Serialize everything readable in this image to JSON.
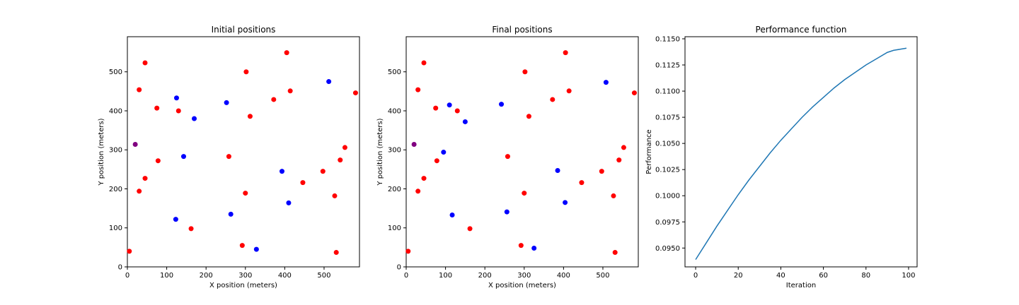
{
  "chart_data": [
    {
      "type": "scatter",
      "title": "Initial positions",
      "xlabel": "X position (meters)",
      "ylabel": "Y position (meters)",
      "xlim": [
        0,
        590
      ],
      "ylim": [
        0,
        590
      ],
      "xticks": [
        0,
        100,
        200,
        300,
        400,
        500
      ],
      "yticks": [
        0,
        100,
        200,
        300,
        400,
        500
      ],
      "colors": {
        "red": "#ff0000",
        "blue": "#0000ff",
        "purple": "#800080"
      },
      "series": [
        {
          "color": "red",
          "points": [
            [
              5,
              40
            ],
            [
              45,
              523
            ],
            [
              30,
              454
            ],
            [
              75,
              407
            ],
            [
              78,
              272
            ],
            [
              45,
              227
            ],
            [
              30,
              194
            ],
            [
              130,
              400
            ],
            [
              162,
              98
            ],
            [
              258,
              283
            ],
            [
              302,
              500
            ],
            [
              312,
              386
            ],
            [
              300,
              189
            ],
            [
              292,
              55
            ],
            [
              372,
              429
            ],
            [
              405,
              549
            ],
            [
              414,
              451
            ],
            [
              446,
              216
            ],
            [
              497,
              245
            ],
            [
              527,
              182
            ],
            [
              531,
              37
            ],
            [
              541,
              274
            ],
            [
              553,
              306
            ],
            [
              580,
              446
            ]
          ]
        },
        {
          "color": "blue",
          "points": [
            [
              125,
              433
            ],
            [
              143,
              283
            ],
            [
              170,
              380
            ],
            [
              123,
              122
            ],
            [
              252,
              421
            ],
            [
              263,
              135
            ],
            [
              328,
              45
            ],
            [
              393,
              245
            ],
            [
              410,
              164
            ],
            [
              512,
              475
            ]
          ]
        },
        {
          "color": "purple",
          "points": [
            [
              20,
              314
            ]
          ]
        }
      ]
    },
    {
      "type": "scatter",
      "title": "Final positions",
      "xlabel": "X position (meters)",
      "ylabel": "Y position (meters)",
      "xlim": [
        0,
        590
      ],
      "ylim": [
        0,
        590
      ],
      "xticks": [
        0,
        100,
        200,
        300,
        400,
        500
      ],
      "yticks": [
        0,
        100,
        200,
        300,
        400,
        500
      ],
      "colors": {
        "red": "#ff0000",
        "blue": "#0000ff",
        "purple": "#800080"
      },
      "series": [
        {
          "color": "red",
          "points": [
            [
              5,
              40
            ],
            [
              45,
              523
            ],
            [
              30,
              454
            ],
            [
              75,
              407
            ],
            [
              78,
              272
            ],
            [
              45,
              227
            ],
            [
              30,
              194
            ],
            [
              130,
              400
            ],
            [
              162,
              98
            ],
            [
              258,
              283
            ],
            [
              302,
              500
            ],
            [
              312,
              386
            ],
            [
              300,
              189
            ],
            [
              292,
              55
            ],
            [
              372,
              429
            ],
            [
              405,
              549
            ],
            [
              414,
              451
            ],
            [
              446,
              216
            ],
            [
              497,
              245
            ],
            [
              527,
              182
            ],
            [
              531,
              37
            ],
            [
              541,
              274
            ],
            [
              553,
              306
            ],
            [
              580,
              446
            ]
          ]
        },
        {
          "color": "blue",
          "points": [
            [
              110,
              415
            ],
            [
              95,
              294
            ],
            [
              150,
              372
            ],
            [
              117,
              133
            ],
            [
              242,
              417
            ],
            [
              256,
              141
            ],
            [
              325,
              48
            ],
            [
              385,
              247
            ],
            [
              404,
              165
            ],
            [
              508,
              473
            ]
          ]
        },
        {
          "color": "purple",
          "points": [
            [
              20,
              314
            ]
          ]
        }
      ]
    },
    {
      "type": "line",
      "title": "Performance function",
      "xlabel": "Iteration",
      "ylabel": "Performance",
      "xlim": [
        -5,
        104
      ],
      "ylim": [
        0.0932,
        0.1152
      ],
      "xticks": [
        0,
        20,
        40,
        60,
        80,
        100
      ],
      "yticks": [
        0.095,
        0.0975,
        0.1,
        0.1025,
        0.105,
        0.1075,
        0.11,
        0.1125,
        0.115
      ],
      "ytick_labels": [
        "0.0950",
        "0.0975",
        "0.1000",
        "0.1025",
        "0.1050",
        "0.1075",
        "0.1100",
        "0.1125",
        "0.1150"
      ],
      "line_color": "#1f77b4",
      "series": [
        {
          "x": [
            0,
            5,
            10,
            15,
            20,
            25,
            30,
            35,
            40,
            45,
            50,
            55,
            60,
            65,
            70,
            75,
            80,
            85,
            90,
            93,
            96,
            99
          ],
          "values": [
            0.0939,
            0.0955,
            0.0971,
            0.0986,
            0.1001,
            0.1015,
            0.1028,
            0.1041,
            0.1053,
            0.1064,
            0.1075,
            0.1085,
            0.1094,
            0.1103,
            0.1111,
            0.1118,
            0.1125,
            0.1131,
            0.1137,
            0.1139,
            0.114,
            0.1141
          ]
        }
      ]
    }
  ]
}
